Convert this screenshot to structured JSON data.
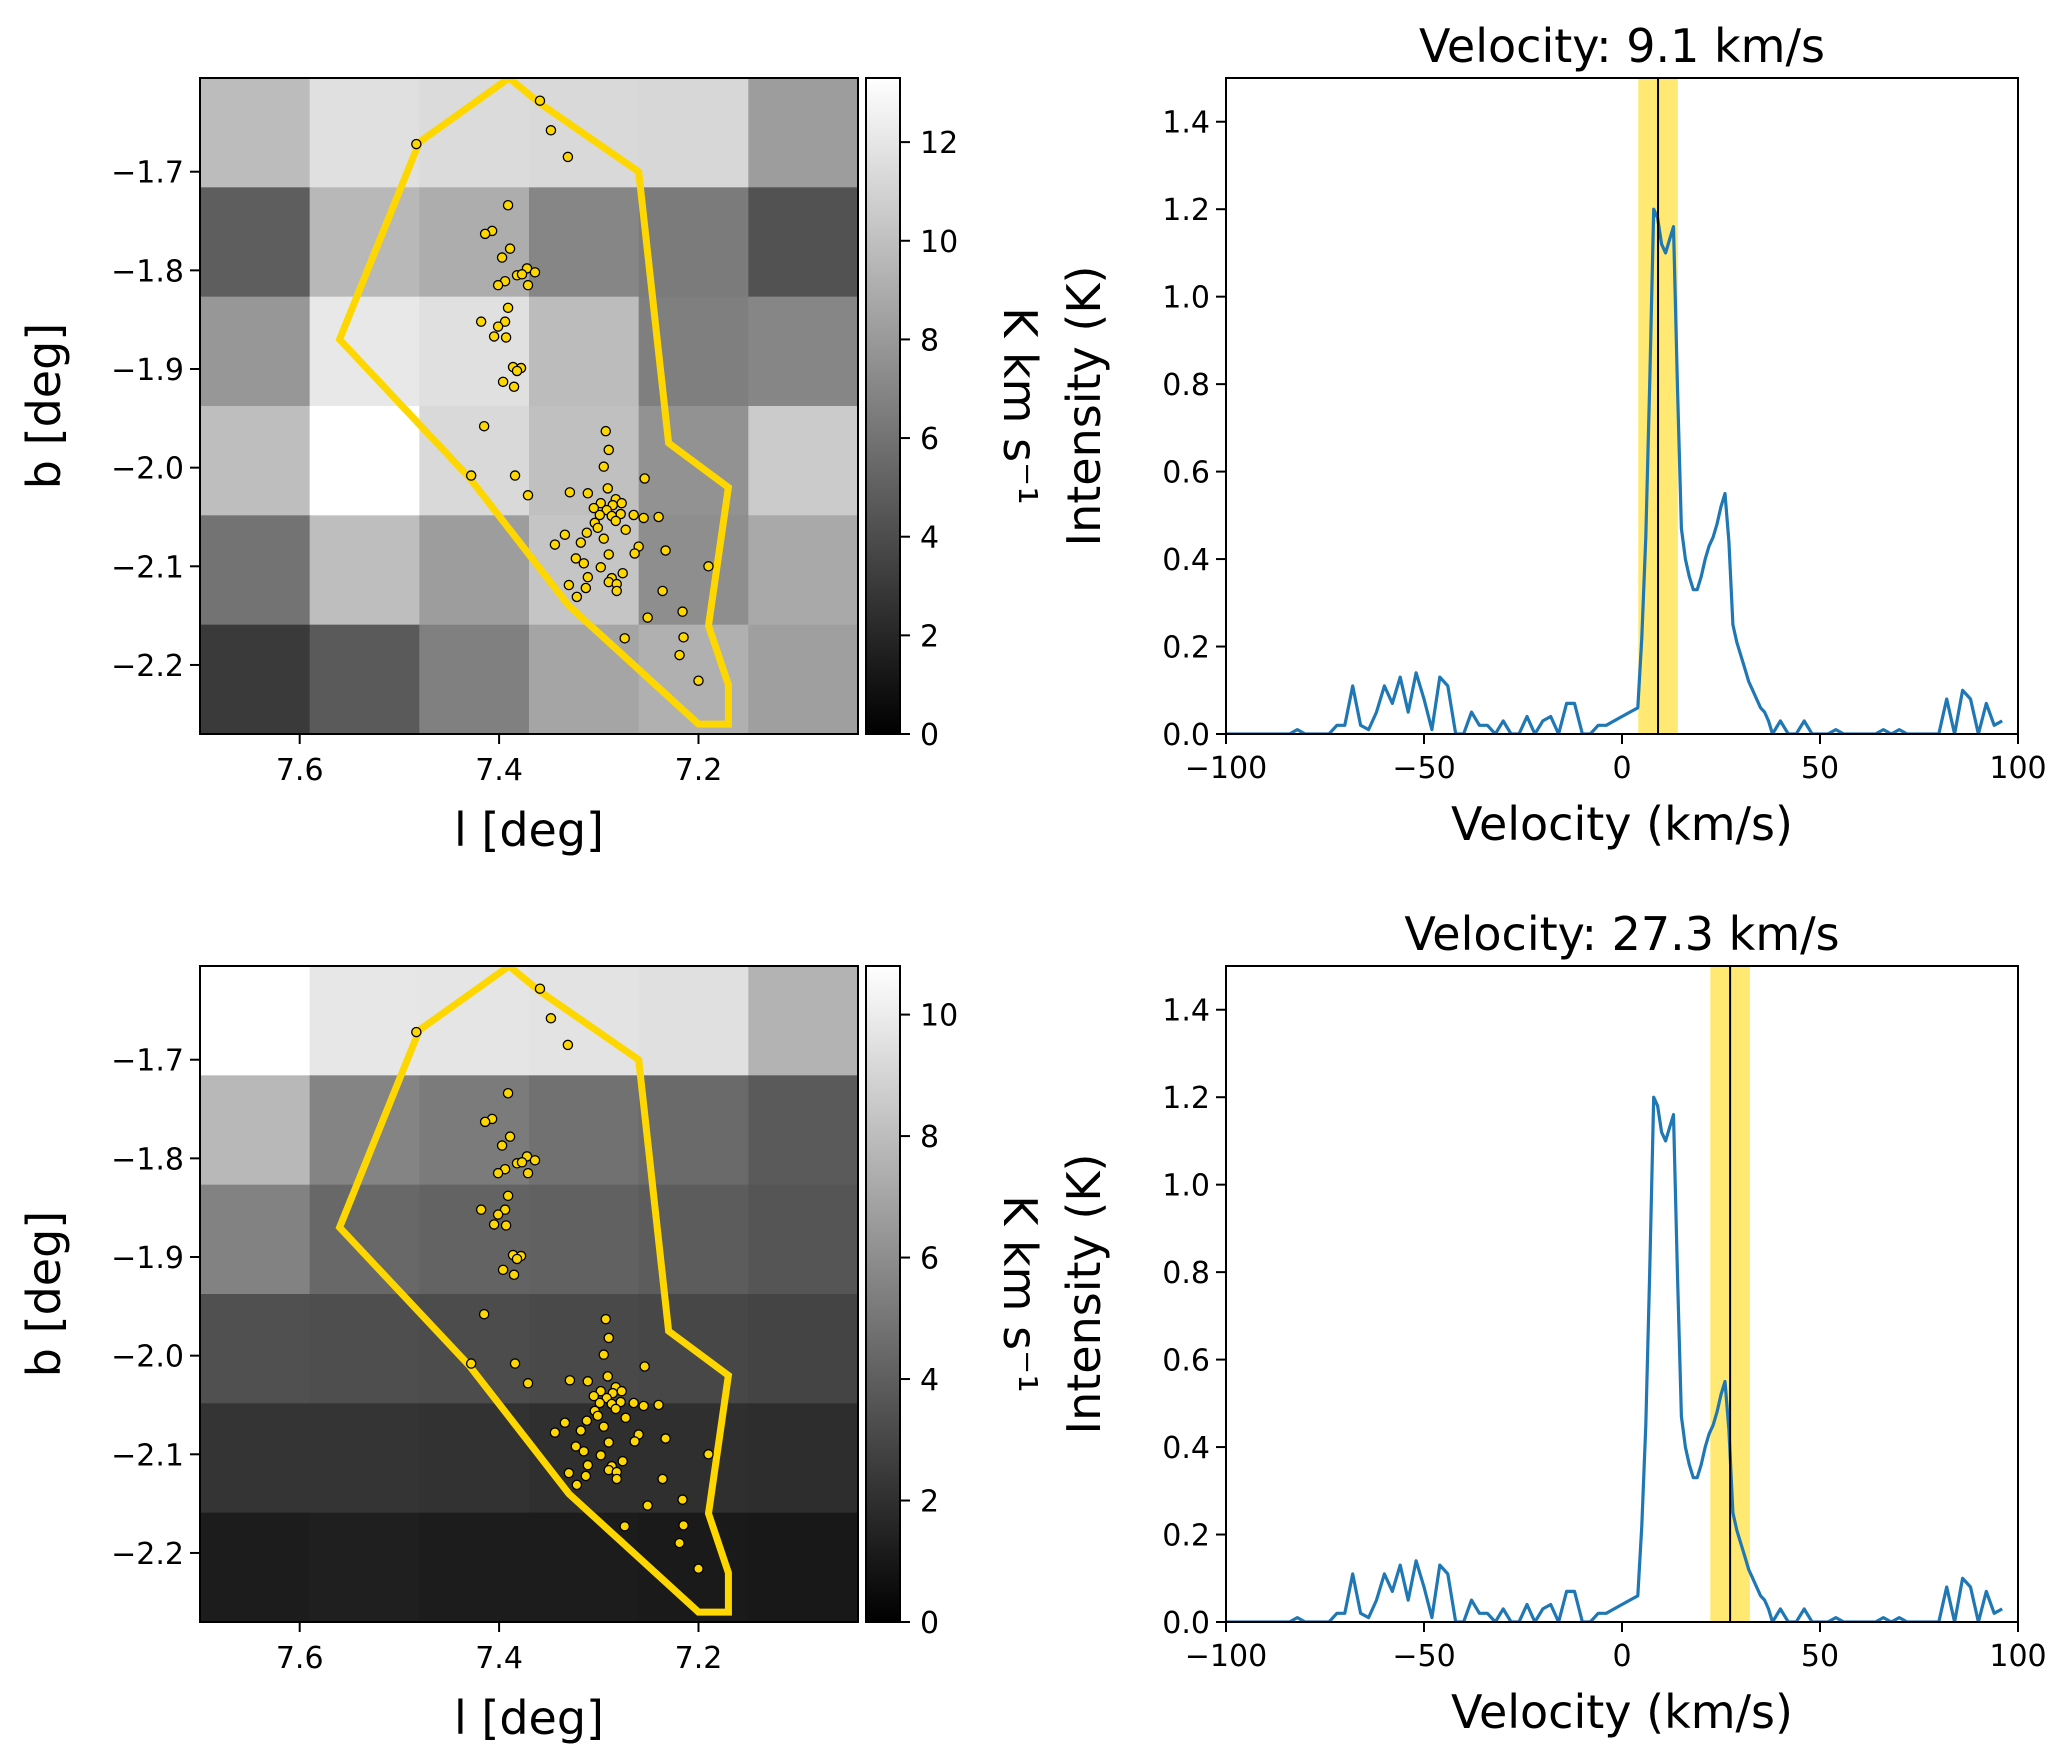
{
  "chart_data": [
    {
      "type": "heatmap",
      "xlabel": "l [deg]",
      "ylabel": "b [deg]",
      "xlim": [
        7.7,
        7.04
      ],
      "ylim": [
        -2.27,
        -1.605
      ],
      "xticks": [
        {
          "v": 7.6,
          "t": "7.6"
        },
        {
          "v": 7.4,
          "t": "7.4"
        },
        {
          "v": 7.2,
          "t": "7.2"
        }
      ],
      "yticks": [
        {
          "v": -1.7,
          "t": "−1.7"
        },
        {
          "v": -1.8,
          "t": "−1.8"
        },
        {
          "v": -1.9,
          "t": "−1.9"
        },
        {
          "v": -2.0,
          "t": "−2.0"
        },
        {
          "v": -2.1,
          "t": "−2.1"
        },
        {
          "v": -2.2,
          "t": "−2.2"
        }
      ],
      "colorbar": {
        "label": "K km s⁻¹",
        "range": [
          0,
          13.3
        ],
        "ticks": [
          {
            "v": 0,
            "t": "0"
          },
          {
            "v": 2,
            "t": "2"
          },
          {
            "v": 4,
            "t": "4"
          },
          {
            "v": 6,
            "t": "6"
          },
          {
            "v": 8,
            "t": "8"
          },
          {
            "v": 10,
            "t": "10"
          },
          {
            "v": 12,
            "t": "12"
          }
        ]
      },
      "grid_values": [
        [
          9.8,
          11.7,
          11.4,
          11.3,
          11.2,
          8.2
        ],
        [
          4.9,
          9.6,
          9.0,
          7.0,
          6.4,
          4.3
        ],
        [
          7.9,
          12.1,
          11.7,
          9.8,
          6.6,
          7.0
        ],
        [
          9.9,
          13.3,
          11.3,
          10.0,
          7.6,
          10.6
        ],
        [
          6.0,
          9.9,
          8.2,
          10.3,
          7.4,
          8.8
        ],
        [
          3.0,
          4.7,
          6.7,
          8.6,
          9.2,
          8.3
        ]
      ]
    },
    {
      "type": "line",
      "title": "Velocity: 9.1 km/s",
      "xlabel": "Velocity (km/s)",
      "ylabel": "Intensity (K)",
      "xlim": [
        -100,
        100
      ],
      "ylim": [
        0,
        1.5
      ],
      "xticks": [
        {
          "v": -100,
          "t": "−100"
        },
        {
          "v": -50,
          "t": "−50"
        },
        {
          "v": 0,
          "t": "0"
        },
        {
          "v": 50,
          "t": "50"
        },
        {
          "v": 100,
          "t": "100"
        }
      ],
      "yticks": [
        {
          "v": 0,
          "t": "0.0"
        },
        {
          "v": 0.2,
          "t": "0.2"
        },
        {
          "v": 0.4,
          "t": "0.4"
        },
        {
          "v": 0.6,
          "t": "0.6"
        },
        {
          "v": 0.8,
          "t": "0.8"
        },
        {
          "v": 1.0,
          "t": "1.0"
        },
        {
          "v": 1.2,
          "t": "1.2"
        },
        {
          "v": 1.4,
          "t": "1.4"
        }
      ],
      "marker_velocity": 9.1,
      "band": [
        4.1,
        14.1
      ],
      "line_color": "#1f77b4",
      "band_color": "#ffd700"
    },
    {
      "type": "heatmap",
      "xlabel": "l [deg]",
      "ylabel": "b [deg]",
      "xlim": [
        7.7,
        7.04
      ],
      "ylim": [
        -2.27,
        -1.605
      ],
      "xticks": [
        {
          "v": 7.6,
          "t": "7.6"
        },
        {
          "v": 7.4,
          "t": "7.4"
        },
        {
          "v": 7.2,
          "t": "7.2"
        }
      ],
      "yticks": [
        {
          "v": -1.7,
          "t": "−1.7"
        },
        {
          "v": -1.8,
          "t": "−1.8"
        },
        {
          "v": -1.9,
          "t": "−1.9"
        },
        {
          "v": -2.0,
          "t": "−2.0"
        },
        {
          "v": -2.1,
          "t": "−2.1"
        },
        {
          "v": -2.2,
          "t": "−2.2"
        }
      ],
      "colorbar": {
        "label": "K km s⁻¹",
        "range": [
          0,
          10.8
        ],
        "ticks": [
          {
            "v": 0,
            "t": "0"
          },
          {
            "v": 2,
            "t": "2"
          },
          {
            "v": 4,
            "t": "4"
          },
          {
            "v": 6,
            "t": "6"
          },
          {
            "v": 8,
            "t": "8"
          },
          {
            "v": 10,
            "t": "10"
          }
        ]
      },
      "grid_values": [
        [
          10.8,
          9.8,
          9.7,
          9.6,
          9.5,
          7.6
        ],
        [
          7.8,
          5.6,
          5.2,
          4.8,
          4.5,
          3.8
        ],
        [
          5.5,
          4.4,
          4.2,
          4.1,
          3.9,
          3.6
        ],
        [
          3.4,
          3.3,
          3.2,
          3.1,
          3.0,
          2.9
        ],
        [
          2.2,
          2.2,
          2.1,
          2.0,
          2.0,
          1.9
        ],
        [
          1.2,
          1.3,
          1.2,
          1.2,
          1.1,
          1.0
        ]
      ]
    },
    {
      "type": "line",
      "title": "Velocity: 27.3 km/s",
      "xlabel": "Velocity (km/s)",
      "ylabel": "Intensity (K)",
      "xlim": [
        -100,
        100
      ],
      "ylim": [
        0,
        1.5
      ],
      "xticks": [
        {
          "v": -100,
          "t": "−100"
        },
        {
          "v": -50,
          "t": "−50"
        },
        {
          "v": 0,
          "t": "0"
        },
        {
          "v": 50,
          "t": "50"
        },
        {
          "v": 100,
          "t": "100"
        }
      ],
      "yticks": [
        {
          "v": 0,
          "t": "0.0"
        },
        {
          "v": 0.2,
          "t": "0.2"
        },
        {
          "v": 0.4,
          "t": "0.4"
        },
        {
          "v": 0.6,
          "t": "0.6"
        },
        {
          "v": 0.8,
          "t": "0.8"
        },
        {
          "v": 1.0,
          "t": "1.0"
        },
        {
          "v": 1.2,
          "t": "1.2"
        },
        {
          "v": 1.4,
          "t": "1.4"
        }
      ],
      "marker_velocity": 27.3,
      "band": [
        22.3,
        32.3
      ],
      "line_color": "#1f77b4",
      "band_color": "#ffd700"
    }
  ],
  "spectrum": {
    "v": [
      -100,
      -84,
      -82,
      -80,
      -78,
      -74,
      -72,
      -70,
      -68,
      -66,
      -64,
      -62,
      -60,
      -58,
      -56,
      -54,
      -52,
      -50,
      -48,
      -46,
      -44,
      -42,
      -40,
      -38,
      -36,
      -34,
      -32,
      -30,
      -28,
      -26,
      -24,
      -22,
      -20,
      -18,
      -16,
      -14,
      -12,
      -10,
      -8,
      -6,
      -4,
      -2,
      0,
      2,
      4,
      5,
      6,
      7,
      8,
      9,
      10,
      11,
      12,
      13,
      14,
      15,
      16,
      17,
      18,
      19,
      20,
      21,
      22,
      23,
      24,
      25,
      26,
      27,
      28,
      29,
      30,
      31,
      32,
      33,
      34,
      35,
      36,
      37,
      38,
      40,
      42,
      44,
      46,
      48,
      50,
      52,
      54,
      56,
      58,
      60,
      62,
      64,
      66,
      68,
      70,
      72,
      74,
      76,
      78,
      80,
      82,
      84,
      86,
      88,
      90,
      92,
      94,
      96
    ],
    "y": [
      0,
      0,
      0.01,
      0,
      0,
      0,
      0.02,
      0.02,
      0.11,
      0.02,
      0.01,
      0.05,
      0.11,
      0.07,
      0.13,
      0.05,
      0.14,
      0.08,
      0.01,
      0.13,
      0.11,
      0,
      0,
      0.05,
      0.02,
      0.02,
      0,
      0.03,
      0,
      0,
      0.04,
      0,
      0.03,
      0.04,
      0,
      0.07,
      0.07,
      0,
      0,
      0.02,
      0.02,
      0.03,
      0.04,
      0.05,
      0.06,
      0.22,
      0.45,
      0.8,
      1.2,
      1.18,
      1.12,
      1.1,
      1.13,
      1.16,
      0.8,
      0.47,
      0.4,
      0.36,
      0.33,
      0.33,
      0.36,
      0.4,
      0.43,
      0.45,
      0.48,
      0.52,
      0.55,
      0.44,
      0.25,
      0.21,
      0.18,
      0.15,
      0.12,
      0.1,
      0.08,
      0.06,
      0.05,
      0.03,
      0,
      0.03,
      0,
      0,
      0.03,
      0,
      0,
      0,
      0.01,
      0,
      0,
      0,
      0,
      0,
      0.01,
      0,
      0.01,
      0,
      0,
      0,
      0,
      0,
      0.08,
      0,
      0.1,
      0.08,
      0,
      0.07,
      0.02,
      0.03,
      0
    ]
  },
  "overlay": {
    "polygon": [
      [
        7.39,
        -1.605
      ],
      [
        7.48,
        -1.67
      ],
      [
        7.56,
        -1.87
      ],
      [
        7.43,
        -2.01
      ],
      [
        7.33,
        -2.14
      ],
      [
        7.2,
        -2.26
      ],
      [
        7.17,
        -2.26
      ],
      [
        7.17,
        -2.22
      ],
      [
        7.19,
        -2.16
      ],
      [
        7.17,
        -2.02
      ],
      [
        7.23,
        -1.975
      ],
      [
        7.26,
        -1.7
      ],
      [
        7.36,
        -1.63
      ]
    ],
    "points": [
      [
        7.483,
        -1.672
      ],
      [
        7.359,
        -1.628
      ],
      [
        7.348,
        -1.658
      ],
      [
        7.331,
        -1.685
      ],
      [
        7.391,
        -1.734
      ],
      [
        7.407,
        -1.76
      ],
      [
        7.414,
        -1.763
      ],
      [
        7.389,
        -1.778
      ],
      [
        7.397,
        -1.787
      ],
      [
        7.382,
        -1.805
      ],
      [
        7.372,
        -1.798
      ],
      [
        7.364,
        -1.802
      ],
      [
        7.371,
        -1.815
      ],
      [
        7.394,
        -1.811
      ],
      [
        7.401,
        -1.815
      ],
      [
        7.377,
        -1.804
      ],
      [
        7.391,
        -1.838
      ],
      [
        7.418,
        -1.852
      ],
      [
        7.394,
        -1.852
      ],
      [
        7.401,
        -1.857
      ],
      [
        7.405,
        -1.867
      ],
      [
        7.393,
        -1.868
      ],
      [
        7.386,
        -1.898
      ],
      [
        7.378,
        -1.899
      ],
      [
        7.382,
        -1.902
      ],
      [
        7.396,
        -1.913
      ],
      [
        7.385,
        -1.918
      ],
      [
        7.415,
        -1.958
      ],
      [
        7.293,
        -1.963
      ],
      [
        7.29,
        -1.982
      ],
      [
        7.295,
        -1.999
      ],
      [
        7.384,
        -2.008
      ],
      [
        7.428,
        -2.008
      ],
      [
        7.254,
        -2.011
      ],
      [
        7.371,
        -2.028
      ],
      [
        7.329,
        -2.025
      ],
      [
        7.311,
        -2.026
      ],
      [
        7.291,
        -2.021
      ],
      [
        7.283,
        -2.032
      ],
      [
        7.298,
        -2.036
      ],
      [
        7.286,
        -2.038
      ],
      [
        7.277,
        -2.036
      ],
      [
        7.292,
        -2.043
      ],
      [
        7.278,
        -2.047
      ],
      [
        7.305,
        -2.041
      ],
      [
        7.299,
        -2.048
      ],
      [
        7.287,
        -2.049
      ],
      [
        7.265,
        -2.048
      ],
      [
        7.283,
        -2.054
      ],
      [
        7.255,
        -2.051
      ],
      [
        7.24,
        -2.05
      ],
      [
        7.304,
        -2.056
      ],
      [
        7.301,
        -2.061
      ],
      [
        7.273,
        -2.063
      ],
      [
        7.312,
        -2.066
      ],
      [
        7.334,
        -2.068
      ],
      [
        7.295,
        -2.072
      ],
      [
        7.344,
        -2.078
      ],
      [
        7.318,
        -2.076
      ],
      [
        7.26,
        -2.08
      ],
      [
        7.233,
        -2.084
      ],
      [
        7.29,
        -2.088
      ],
      [
        7.264,
        -2.087
      ],
      [
        7.323,
        -2.092
      ],
      [
        7.315,
        -2.097
      ],
      [
        7.298,
        -2.101
      ],
      [
        7.19,
        -2.1
      ],
      [
        7.276,
        -2.107
      ],
      [
        7.287,
        -2.112
      ],
      [
        7.29,
        -2.116
      ],
      [
        7.282,
        -2.118
      ],
      [
        7.311,
        -2.111
      ],
      [
        7.33,
        -2.119
      ],
      [
        7.313,
        -2.122
      ],
      [
        7.322,
        -2.131
      ],
      [
        7.236,
        -2.125
      ],
      [
        7.282,
        -2.125
      ],
      [
        7.216,
        -2.146
      ],
      [
        7.251,
        -2.152
      ],
      [
        7.274,
        -2.173
      ],
      [
        7.215,
        -2.172
      ],
      [
        7.219,
        -2.19
      ],
      [
        7.2,
        -2.216
      ]
    ],
    "color": "#ffd700"
  }
}
